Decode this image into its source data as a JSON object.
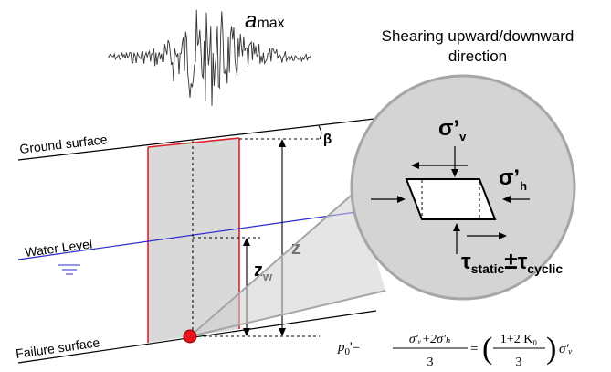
{
  "seismogram": {
    "label_main": "a",
    "label_sub": "max"
  },
  "shear_direction": {
    "line1": "Shearing upward/downward",
    "line2": "direction"
  },
  "slope": {
    "ground_surface": "Ground surface",
    "water_level": "Water Level",
    "failure_surface": "Failure surface",
    "beta": "β",
    "z": "z",
    "zw_main": "z",
    "zw_sub": "w"
  },
  "element": {
    "sigma_v_main": "σ’",
    "sigma_v_sub": "v",
    "sigma_h_main": "σ’",
    "sigma_h_sub": "h",
    "tau_static_main": "τ",
    "tau_static_sub": "static",
    "plusminus": "±",
    "tau_cyclic_main": "τ",
    "tau_cyclic_sub": "cyclic"
  },
  "equation": {
    "lhs_p": "p",
    "lhs_sub": "0",
    "lhs_rest": "'=",
    "frac1_num": "σ'ᵥ+2σ'ₕ",
    "frac1_den": "3",
    "eq2": "=",
    "frac2_num": "1+2 K₀",
    "frac2_den": "3",
    "rhs": "σ'ᵥ"
  },
  "colors": {
    "soil_fill": "#d9d9d9",
    "column_edge": "#e0202a",
    "water_line": "#2a2ad0",
    "failure_point": "#e8141c",
    "circle_fill": "#d4d4d4",
    "circle_stroke": "#a6a6a6"
  }
}
